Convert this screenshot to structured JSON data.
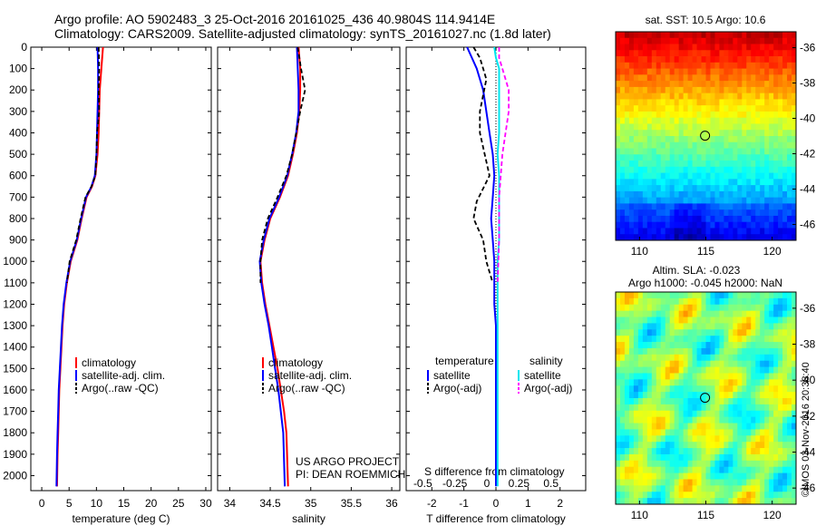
{
  "title_line1": "Argo profile: AO 5902483_3 25-Oct-2016 20161025_436 40.9804S 114.9414E",
  "title_line2": "Climatology: CARS2009. Satellite-adjusted climatology: synTS_20161027.nc (1.8d later)",
  "watermark": "©IMOS 03-Nov-2016 20:38:40",
  "colors": {
    "climatology": "#ff0000",
    "satellite": "#0000ff",
    "argo": "#000000",
    "sat_salinity": "#00e5ee",
    "argo_salinity": "#ff00ff"
  },
  "chart_data": [
    {
      "type": "line",
      "id": "temperature",
      "xlabel": "temperature (deg C)",
      "xlim": [
        -2,
        31
      ],
      "ylim": [
        2070,
        0
      ],
      "xticks": [
        "0",
        "5",
        "10",
        "15",
        "20",
        "25",
        "30"
      ],
      "yticks": [
        "0",
        "100",
        "200",
        "300",
        "400",
        "500",
        "600",
        "700",
        "800",
        "900",
        "1000",
        "1100",
        "1200",
        "1300",
        "1400",
        "1500",
        "1600",
        "1700",
        "1800",
        "1900",
        "2000"
      ],
      "legend": [
        "climatology",
        "satellite-adj. clim.",
        "Argo(..raw -QC)"
      ],
      "series": [
        {
          "name": "climatology",
          "x": [
            11.2,
            10.9,
            10.6,
            10.5,
            10.4,
            10.2,
            9.8,
            9.2,
            8.2,
            7.3,
            6.5,
            5.3,
            4.6,
            4.1,
            3.8,
            3.6,
            3.4,
            3.2,
            3.1,
            3.0,
            2.9,
            2.8
          ],
          "y": [
            0,
            100,
            200,
            300,
            400,
            500,
            600,
            650,
            700,
            800,
            900,
            1000,
            1100,
            1200,
            1300,
            1400,
            1500,
            1600,
            1700,
            1800,
            1900,
            2050
          ]
        },
        {
          "name": "satellite-adj. clim.",
          "x": [
            10.2,
            10.3,
            10.3,
            10.2,
            10.1,
            10.0,
            9.7,
            9.1,
            8.1,
            7.2,
            6.4,
            5.2,
            4.5,
            4.0,
            3.7,
            3.5,
            3.3,
            3.1,
            3.0,
            2.9,
            2.8,
            2.7
          ],
          "y": [
            0,
            100,
            200,
            300,
            400,
            500,
            600,
            650,
            700,
            800,
            900,
            1000,
            1100,
            1200,
            1300,
            1400,
            1500,
            1600,
            1700,
            1800,
            1900,
            2050
          ]
        },
        {
          "name": "Argo(..raw -QC)",
          "x": [
            10.4,
            10.5,
            10.4,
            10.5,
            10.1,
            10.0,
            9.8,
            9.1,
            8.0,
            7.1,
            6.3,
            5.1,
            4.6
          ],
          "y": [
            0,
            100,
            200,
            300,
            400,
            500,
            600,
            650,
            700,
            800,
            900,
            1000,
            1100
          ]
        }
      ]
    },
    {
      "type": "line",
      "id": "salinity",
      "xlabel": "salinity",
      "xlim": [
        33.85,
        36.1
      ],
      "ylim": [
        2070,
        0
      ],
      "xticks": [
        "34",
        "34.5",
        "35",
        "35.5",
        "36"
      ],
      "legend": [
        "climatology",
        "satellite-adj. clim.",
        "Argo(..raw -QC)"
      ],
      "annotation": [
        "US ARGO PROJECT",
        "PI: DEAN ROEMMICH"
      ],
      "series": [
        {
          "name": "climatology",
          "x": [
            34.85,
            34.87,
            34.87,
            34.86,
            34.83,
            34.78,
            34.72,
            34.62,
            34.5,
            34.43,
            34.38,
            34.4,
            34.44,
            34.49,
            34.54,
            34.59,
            34.63,
            34.67,
            34.7,
            34.72
          ],
          "y": [
            0,
            100,
            200,
            300,
            400,
            500,
            600,
            700,
            800,
            900,
            1000,
            1100,
            1200,
            1300,
            1400,
            1500,
            1600,
            1700,
            1800,
            2050
          ]
        },
        {
          "name": "satellite-adj. clim.",
          "x": [
            34.83,
            34.84,
            34.85,
            34.85,
            34.82,
            34.77,
            34.71,
            34.61,
            34.49,
            34.42,
            34.37,
            34.39,
            34.43,
            34.48,
            34.52,
            34.56,
            34.6,
            34.63,
            34.66,
            34.68
          ],
          "y": [
            0,
            100,
            200,
            300,
            400,
            500,
            600,
            700,
            800,
            900,
            1000,
            1100,
            1200,
            1300,
            1400,
            1500,
            1600,
            1700,
            1800,
            2050
          ]
        },
        {
          "name": "Argo(..raw -QC)",
          "x": [
            34.84,
            34.88,
            34.93,
            34.87,
            34.82,
            34.77,
            34.7,
            34.59,
            34.47,
            34.4,
            34.38,
            34.38
          ],
          "y": [
            0,
            100,
            200,
            300,
            400,
            500,
            600,
            700,
            800,
            900,
            1000,
            1100
          ]
        }
      ]
    },
    {
      "type": "line",
      "id": "difference",
      "xlabel": "T difference from climatology",
      "xlabel_top": "S difference from climatology",
      "xlim": [
        -2.8,
        2.8
      ],
      "ylim": [
        2070,
        0
      ],
      "xticks": [
        "-2",
        "-1",
        "0",
        "1",
        "2"
      ],
      "xticks_top": [
        "-0.5",
        "-0.25",
        "0",
        "0.25",
        "0.5"
      ],
      "legend_left_title": "temperature",
      "legend_right_title": "salinity",
      "legend": [
        "satellite",
        "Argo(-adj)",
        "satellite",
        "Argo(-adj)"
      ],
      "series": [
        {
          "name": "satellite",
          "group": "temperature",
          "x": [
            -0.9,
            -0.6,
            -0.4,
            -0.3,
            -0.2,
            -0.1,
            -0.05,
            -0.1,
            -0.15,
            -0.1,
            -0.05,
            -0.05,
            -0.05,
            0,
            0,
            0,
            0
          ],
          "y": [
            0,
            100,
            200,
            300,
            400,
            500,
            600,
            700,
            800,
            900,
            1000,
            1100,
            1200,
            1300,
            1400,
            1600,
            2050
          ]
        },
        {
          "name": "Argo(-adj)",
          "group": "temperature",
          "x": [
            -0.7,
            -0.5,
            -0.4,
            -0.3,
            -0.5,
            -0.5,
            -0.2,
            -0.6,
            -0.7,
            -0.4,
            -0.3,
            -0.2,
            -0.1
          ],
          "y": [
            0,
            50,
            100,
            150,
            300,
            400,
            600,
            720,
            800,
            900,
            1000,
            1050,
            1100
          ]
        },
        {
          "name": "satellite",
          "group": "salinity",
          "x": [
            -0.05,
            0.0,
            0.1,
            0.1,
            0.1,
            0.1,
            0.05,
            0.1,
            0.1,
            0.1,
            0.1,
            0.05,
            0.05,
            0.05,
            0.05
          ],
          "y": [
            0,
            50,
            100,
            200,
            300,
            400,
            500,
            600,
            700,
            800,
            900,
            1000,
            1100,
            1300,
            2050
          ]
        },
        {
          "name": "Argo(-adj)",
          "group": "salinity",
          "x": [
            0.1,
            0.1,
            0.2,
            0.4,
            0.4,
            0.2,
            0.1,
            0.1,
            0.05
          ],
          "y": [
            0,
            50,
            100,
            200,
            300,
            500,
            700,
            900,
            1100
          ]
        }
      ]
    },
    {
      "type": "heatmap",
      "id": "sst-map",
      "title": "sat. SST: 10.5 Argo: 10.6",
      "xlim": [
        108.2,
        121.8
      ],
      "ylim": [
        -46.9,
        -35.1
      ],
      "xticks": [
        "110",
        "115",
        "120"
      ],
      "yticks": [
        "-36",
        "-38",
        "-40",
        "-42",
        "-44",
        "-46"
      ],
      "marker": {
        "lon": 114.94,
        "lat": -40.98
      }
    },
    {
      "type": "heatmap",
      "id": "sla-map",
      "title_line1": "Altim. SLA: -0.023",
      "title_line2": "Argo h1000: -0.045 h2000: NaN",
      "xlim": [
        108.2,
        121.8
      ],
      "ylim": [
        -46.9,
        -35.1
      ],
      "xticks": [
        "110",
        "115",
        "120"
      ],
      "yticks": [
        "-36",
        "-38",
        "-40",
        "-42",
        "-44",
        "-46"
      ],
      "marker": {
        "lon": 114.94,
        "lat": -40.98
      }
    }
  ]
}
